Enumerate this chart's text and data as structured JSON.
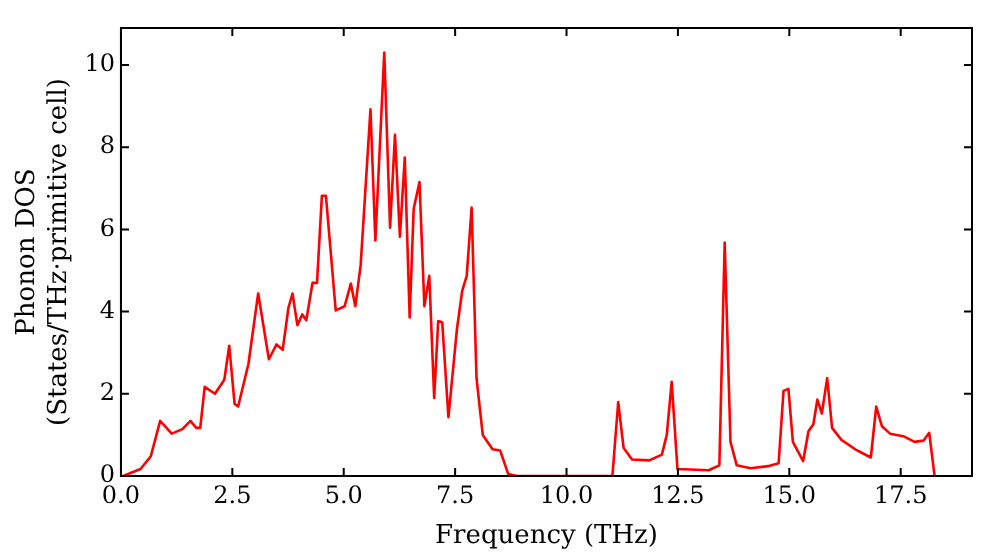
{
  "chart_data": {
    "type": "line",
    "xlabel": "Frequency (THz)",
    "ylabel": "Phonon DOS\n(States/THz·primitive cell)",
    "xlim": [
      0,
      19.1
    ],
    "ylim": [
      0,
      10.9
    ],
    "xticks": [
      {
        "value": 0,
        "label": "0.0"
      },
      {
        "value": 2.5,
        "label": "2.5"
      },
      {
        "value": 5,
        "label": "5.0"
      },
      {
        "value": 7.5,
        "label": "7.5"
      },
      {
        "value": 10,
        "label": "10.0"
      },
      {
        "value": 12.5,
        "label": "12.5"
      },
      {
        "value": 15,
        "label": "15.0"
      },
      {
        "value": 17.5,
        "label": "17.5"
      }
    ],
    "yticks": [
      0,
      2,
      4,
      6,
      8,
      10
    ],
    "grid": false,
    "legend": false,
    "marker": "none",
    "line_style": "solid",
    "series": [
      {
        "color": "#ff0000",
        "x": [
          0.05,
          0.44,
          0.67,
          0.88,
          1.14,
          1.38,
          1.56,
          1.69,
          1.78,
          1.88,
          2.11,
          2.32,
          2.43,
          2.55,
          2.63,
          2.86,
          3.08,
          3.32,
          3.49,
          3.63,
          3.76,
          3.85,
          3.96,
          4.07,
          4.16,
          4.3,
          4.4,
          4.51,
          4.6,
          4.82,
          5.02,
          5.16,
          5.26,
          5.38,
          5.6,
          5.71,
          5.91,
          6.04,
          6.15,
          6.26,
          6.37,
          6.48,
          6.57,
          6.7,
          6.81,
          6.92,
          7.03,
          7.12,
          7.21,
          7.35,
          7.54,
          7.66,
          7.76,
          7.87,
          7.98,
          8.12,
          8.34,
          8.51,
          8.69,
          8.89,
          11.03,
          11.16,
          11.28,
          11.47,
          11.86,
          12.14,
          12.25,
          12.36,
          12.49,
          13.19,
          13.43,
          13.55,
          13.68,
          13.82,
          14.13,
          14.52,
          14.76,
          14.87,
          14.98,
          15.08,
          15.31,
          15.43,
          15.54,
          15.63,
          15.73,
          15.85,
          15.96,
          16.17,
          16.48,
          16.83,
          16.95,
          17.08,
          17.26,
          17.58,
          17.81,
          18.01,
          18.14,
          18.26
        ],
        "values": [
          0,
          0.17,
          0.48,
          1.34,
          1.03,
          1.14,
          1.34,
          1.17,
          1.17,
          2.17,
          2.0,
          2.34,
          3.17,
          1.76,
          1.69,
          2.72,
          4.44,
          2.84,
          3.2,
          3.07,
          4.1,
          4.44,
          3.67,
          3.93,
          3.79,
          4.7,
          4.7,
          6.82,
          6.82,
          4.03,
          4.13,
          4.68,
          4.13,
          5.13,
          8.92,
          5.73,
          10.3,
          6.04,
          8.3,
          5.82,
          7.75,
          3.86,
          6.5,
          7.15,
          4.13,
          4.87,
          1.9,
          3.77,
          3.74,
          1.43,
          3.57,
          4.51,
          4.87,
          6.53,
          2.38,
          1.0,
          0.65,
          0.62,
          0.05,
          0,
          0,
          1.8,
          0.69,
          0.4,
          0.38,
          0.52,
          1.0,
          2.29,
          0.17,
          0.14,
          0.26,
          5.68,
          0.83,
          0.26,
          0.19,
          0.24,
          0.31,
          2.07,
          2.12,
          0.83,
          0.36,
          1.09,
          1.26,
          1.86,
          1.52,
          2.38,
          1.17,
          0.88,
          0.65,
          0.45,
          1.69,
          1.21,
          1.03,
          0.96,
          0.83,
          0.86,
          1.05,
          0
        ]
      }
    ]
  }
}
